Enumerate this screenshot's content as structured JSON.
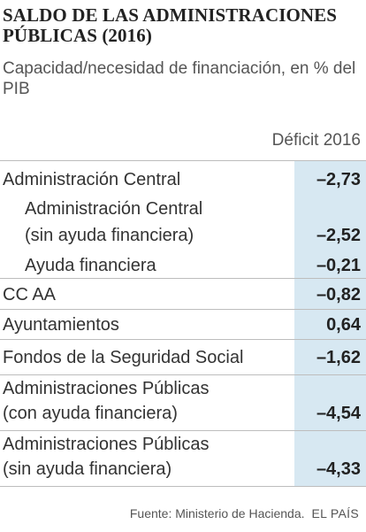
{
  "header": {
    "title": "SALDO DE LAS ADMINISTRACIONES PÚBLICAS (2016)",
    "subtitle": "Capacidad/necesidad de financiación, en % del PIB",
    "column_header": "Déficit 2016"
  },
  "chart_data": {
    "type": "table",
    "title": "SALDO DE LAS ADMINISTRACIONES PÚBLICAS (2016)",
    "subtitle": "Capacidad/necesidad de financiación, en % del PIB",
    "columns": [
      "",
      "Déficit 2016"
    ],
    "rows": [
      {
        "label": "Administración Central",
        "value": "–2,73"
      },
      {
        "label": "Administración Central (sin ayuda financiera)",
        "value": "–2,52"
      },
      {
        "label": "Ayuda financiera",
        "value": "–0,21"
      },
      {
        "label": "CC AA",
        "value": "–0,82"
      },
      {
        "label": "Ayuntamientos",
        "value": "0,64"
      },
      {
        "label": "Fondos de la Seguridad Social",
        "value": "–1,62"
      },
      {
        "label": "Administraciones Públicas (con ayuda financiera)",
        "value": "–4,54"
      },
      {
        "label": "Administraciones Públicas (sin ayuda financiera)",
        "value": "–4,33"
      }
    ]
  },
  "rows_display": [
    {
      "line1": "Administración Central",
      "line2": ""
    },
    {
      "line1": "Administración Central",
      "line2": "(sin ayuda financiera)"
    },
    {
      "line1": "Ayuda financiera",
      "line2": ""
    },
    {
      "line1": "CC AA",
      "line2": ""
    },
    {
      "line1": "Ayuntamientos",
      "line2": ""
    },
    {
      "line1": "Fondos de la Seguridad Social",
      "line2": ""
    },
    {
      "line1": "Administraciones Públicas",
      "line2": "(con ayuda financiera)"
    },
    {
      "line1": "Administraciones Públicas",
      "line2": "(sin ayuda financiera)"
    }
  ],
  "footer": {
    "source": "Fuente: Ministerio de Hacienda.",
    "brand": "EL PAÍS"
  },
  "colors": {
    "value_column_bg": "#d7e8f2",
    "rule": "#bdbdbd"
  }
}
